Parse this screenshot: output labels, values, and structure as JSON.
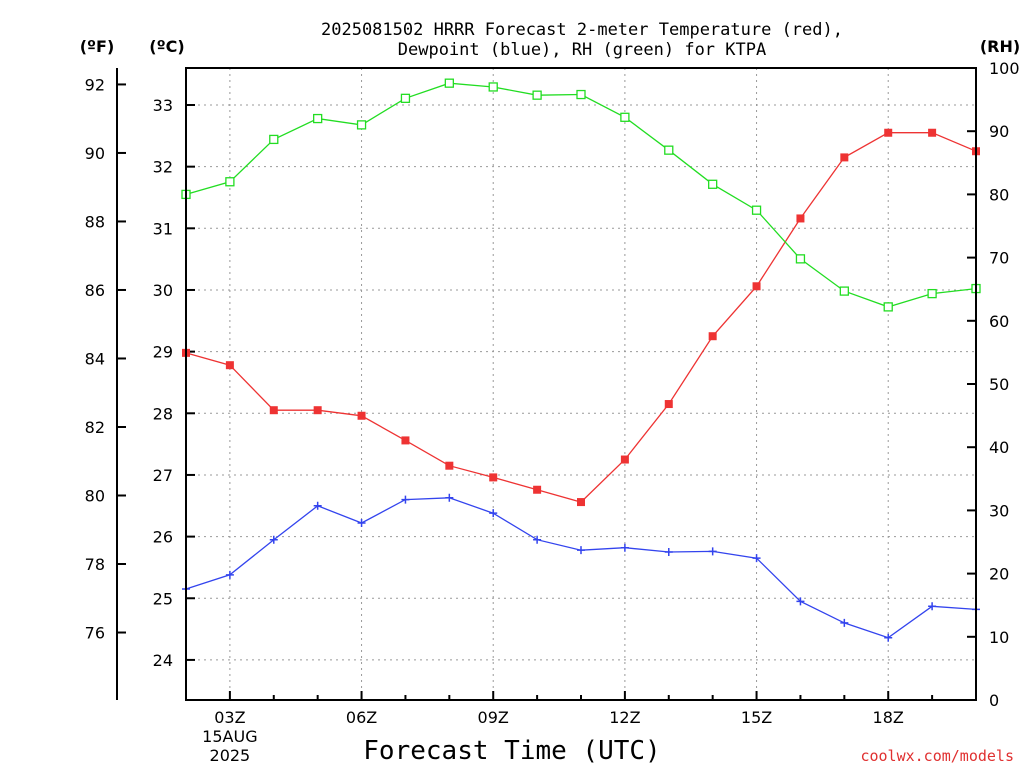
{
  "chart_data": {
    "type": "line",
    "title_line1": "2025081502 HRRR Forecast 2-meter Temperature (red),",
    "title_line2": "Dewpoint (blue), RH (green) for KTPA",
    "xlabel": "Forecast Time (UTC)",
    "unit_labels": {
      "fahrenheit": "(ºF)",
      "celsius": "(ºC)",
      "rh": "(RH)"
    },
    "credit": "coolwx.com/models",
    "x_hours": [
      2,
      3,
      4,
      5,
      6,
      7,
      8,
      9,
      10,
      11,
      12,
      13,
      14,
      15,
      16,
      17,
      18,
      19,
      20
    ],
    "xlim": [
      2,
      20
    ],
    "x_ticks": [
      {
        "hour": 3,
        "label": "03Z",
        "sub1": "15AUG",
        "sub2": "2025"
      },
      {
        "hour": 6,
        "label": "06Z",
        "sub1": "",
        "sub2": ""
      },
      {
        "hour": 9,
        "label": "09Z",
        "sub1": "",
        "sub2": ""
      },
      {
        "hour": 12,
        "label": "12Z",
        "sub1": "",
        "sub2": ""
      },
      {
        "hour": 15,
        "label": "15Z",
        "sub1": "",
        "sub2": ""
      },
      {
        "hour": 18,
        "label": "18Z",
        "sub1": "",
        "sub2": ""
      }
    ],
    "celsius_axis": {
      "lim": [
        23.35,
        33.6
      ],
      "ticks": [
        24,
        25,
        26,
        27,
        28,
        29,
        30,
        31,
        32,
        33
      ]
    },
    "fahrenheit_axis": {
      "ticks": [
        76,
        78,
        80,
        82,
        84,
        86,
        88,
        90,
        92
      ]
    },
    "rh_axis": {
      "lim": [
        0,
        100
      ],
      "ticks": [
        0,
        10,
        20,
        30,
        40,
        50,
        60,
        70,
        80,
        90,
        100
      ]
    },
    "series": [
      {
        "name": "Temperature",
        "axis": "celsius",
        "color": "#ee3333",
        "marker": "filled-square",
        "values": [
          28.98,
          28.78,
          28.05,
          28.05,
          27.96,
          27.56,
          27.15,
          26.96,
          26.76,
          26.56,
          27.25,
          28.15,
          29.25,
          30.06,
          31.16,
          32.15,
          32.55,
          32.55,
          32.25
        ]
      },
      {
        "name": "Dewpoint",
        "axis": "celsius",
        "color": "#3344ee",
        "marker": "plus",
        "values": [
          25.15,
          25.38,
          25.95,
          26.5,
          26.22,
          26.6,
          26.63,
          26.38,
          25.95,
          25.78,
          25.82,
          25.75,
          25.76,
          25.65,
          24.95,
          24.6,
          24.36,
          24.87,
          24.82
        ]
      },
      {
        "name": "RH",
        "axis": "rh",
        "color": "#22dd22",
        "marker": "open-square",
        "values": [
          80,
          82,
          88.7,
          92,
          91,
          95.2,
          97.6,
          97,
          95.7,
          95.8,
          92.2,
          87,
          81.6,
          77.5,
          69.8,
          64.7,
          62.2,
          64.3,
          65.1
        ]
      }
    ]
  }
}
